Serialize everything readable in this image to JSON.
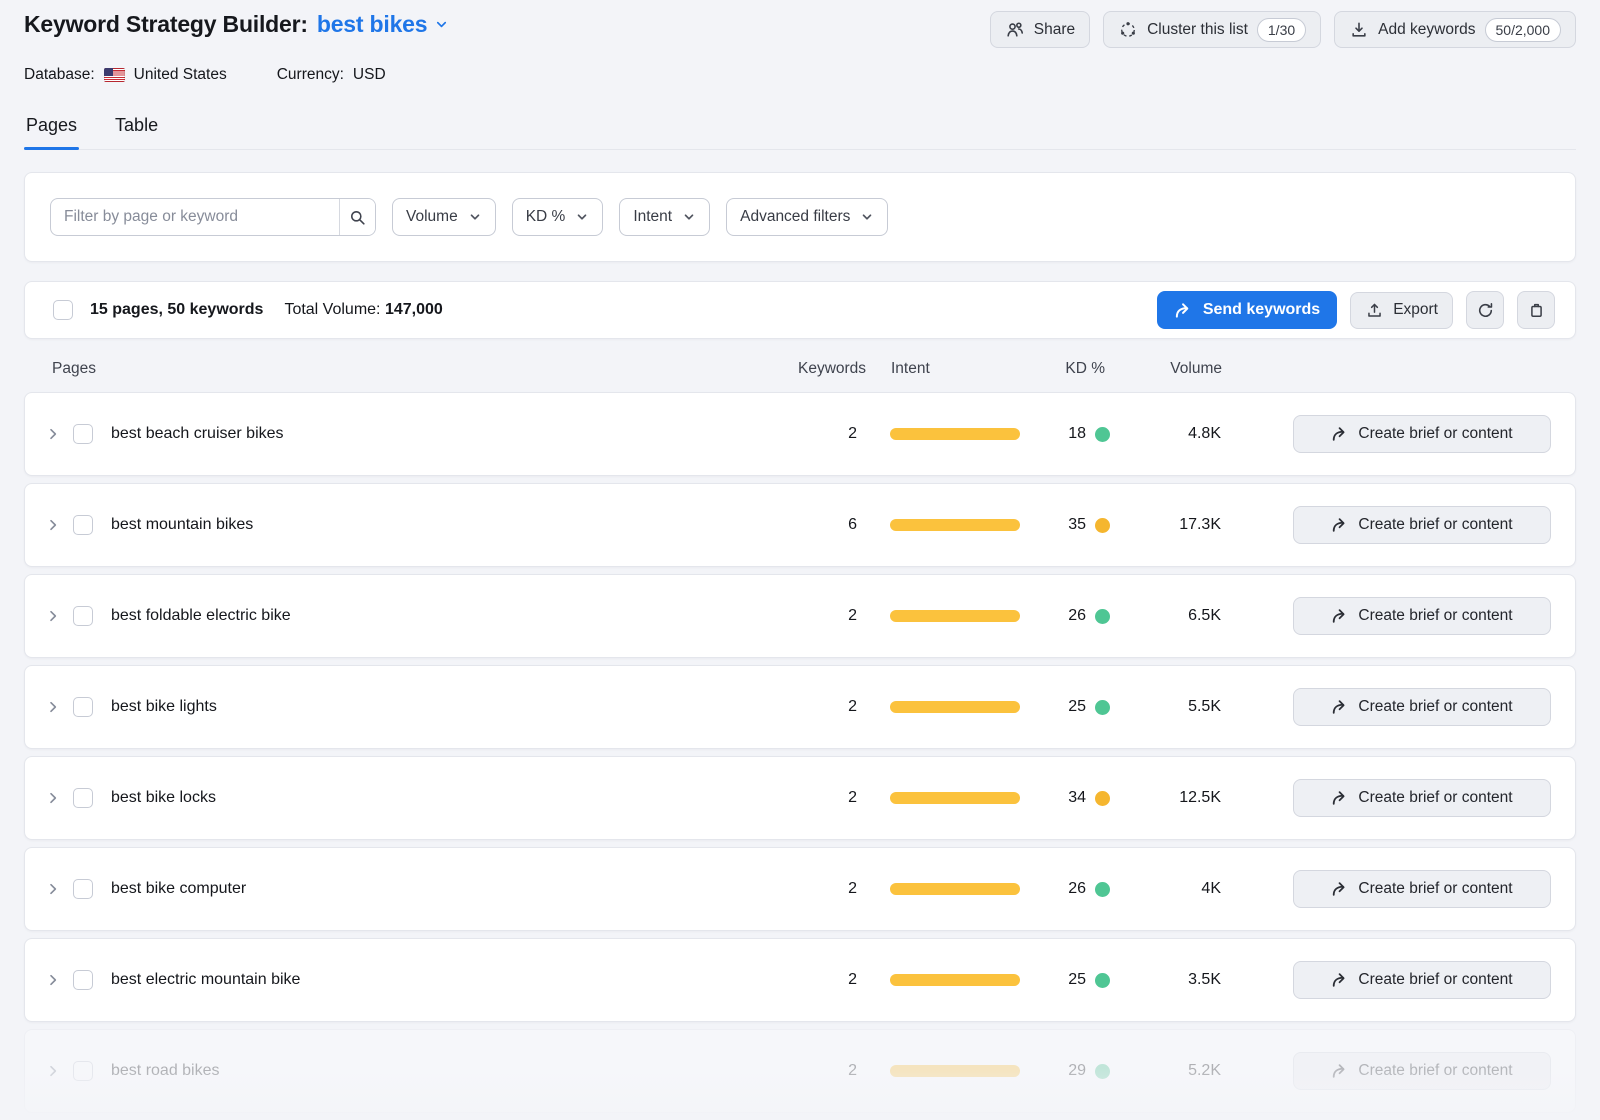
{
  "header": {
    "title": "Keyword Strategy Builder:",
    "list_name": "best bikes",
    "database_label": "Database:",
    "database_value": "United States",
    "currency_label": "Currency:",
    "currency_value": "USD",
    "share_label": "Share",
    "cluster_label": "Cluster this list",
    "cluster_badge": "1/30",
    "add_keywords_label": "Add keywords",
    "add_keywords_badge": "50/2,000"
  },
  "tabs": {
    "pages": "Pages",
    "table": "Table"
  },
  "filters": {
    "search_placeholder": "Filter by page or keyword",
    "volume_label": "Volume",
    "kd_label": "KD %",
    "intent_label": "Intent",
    "advanced_label": "Advanced filters"
  },
  "summary": {
    "selection": "15 pages, 50 keywords",
    "total_label": "Total Volume:",
    "total_value": "147,000",
    "send_label": "Send keywords",
    "export_label": "Export"
  },
  "table": {
    "col_pages": "Pages",
    "col_keywords": "Keywords",
    "col_intent": "Intent",
    "col_kd": "KD %",
    "col_volume": "Volume",
    "action_label": "Create brief or content",
    "rows": [
      {
        "page": "best beach cruiser bikes",
        "keywords": "2",
        "intent_bar_pct": 100,
        "kd": "18",
        "kd_level": "green",
        "volume": "4.8K",
        "faded": false
      },
      {
        "page": "best mountain bikes",
        "keywords": "6",
        "intent_bar_pct": 100,
        "kd": "35",
        "kd_level": "yellow",
        "volume": "17.3K",
        "faded": false
      },
      {
        "page": "best foldable electric bike",
        "keywords": "2",
        "intent_bar_pct": 100,
        "kd": "26",
        "kd_level": "green",
        "volume": "6.5K",
        "faded": false
      },
      {
        "page": "best bike lights",
        "keywords": "2",
        "intent_bar_pct": 100,
        "kd": "25",
        "kd_level": "green",
        "volume": "5.5K",
        "faded": false
      },
      {
        "page": "best bike locks",
        "keywords": "2",
        "intent_bar_pct": 100,
        "kd": "34",
        "kd_level": "yellow",
        "volume": "12.5K",
        "faded": false
      },
      {
        "page": "best bike computer",
        "keywords": "2",
        "intent_bar_pct": 100,
        "kd": "26",
        "kd_level": "green",
        "volume": "4K",
        "faded": false
      },
      {
        "page": "best electric mountain bike",
        "keywords": "2",
        "intent_bar_pct": 100,
        "kd": "25",
        "kd_level": "green",
        "volume": "3.5K",
        "faded": false
      },
      {
        "page": "best road bikes",
        "keywords": "2",
        "intent_bar_pct": 100,
        "kd": "29",
        "kd_level": "green",
        "volume": "5.2K",
        "faded": true
      }
    ]
  },
  "colors": {
    "accent_blue": "#1f76e8",
    "intent_bar_yellow": "#fbc23d",
    "kd_green": "#4fc694",
    "kd_yellow": "#f5b62f",
    "page_background": "#f3f4f8"
  }
}
